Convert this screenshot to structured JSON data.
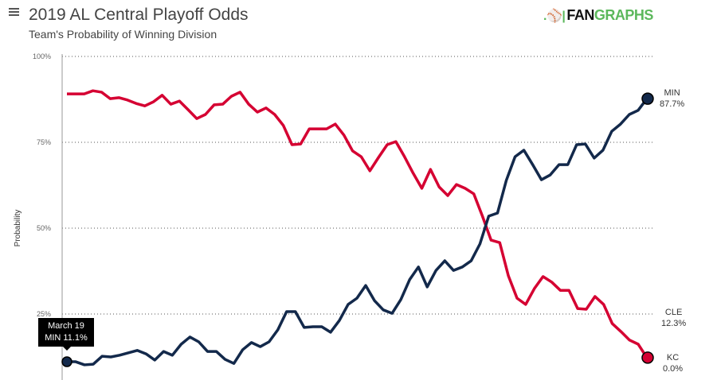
{
  "header": {
    "title": "2019 AL Central Playoff Odds",
    "subtitle": "Team's Probability of Winning Division",
    "menu_icon": "hamburger-icon",
    "logo_fan": "FAN",
    "logo_graphs": "GRAPHS"
  },
  "tooltip": {
    "date": "March 19",
    "text": "MIN 11.1%"
  },
  "chart_data": {
    "type": "line",
    "title": "2019 AL Central Playoff Odds",
    "subtitle": "Team's Probability of Winning Division",
    "ylabel": "Probability",
    "xlabel": "",
    "ylim": [
      0,
      100
    ],
    "yticks": [
      "100%",
      "75%",
      "50%",
      "25%"
    ],
    "ytick_values": [
      100,
      75,
      50,
      25
    ],
    "grid": true,
    "series": [
      {
        "name": "MIN",
        "color": "#13294b",
        "end_label": "MIN",
        "end_value": "87.7%",
        "values": [
          11.1,
          11.1,
          10.2,
          10.4,
          12.7,
          12.5,
          13.0,
          13.7,
          14.4,
          13.4,
          11.6,
          14.1,
          13.0,
          16.2,
          18.3,
          16.9,
          14.1,
          14.1,
          11.8,
          10.6,
          14.6,
          16.7,
          15.5,
          16.9,
          20.4,
          25.7,
          25.7,
          21.1,
          21.3,
          21.3,
          19.7,
          23.1,
          27.8,
          29.6,
          33.3,
          28.9,
          26.2,
          25.2,
          29.2,
          35.0,
          38.7,
          32.9,
          37.7,
          40.5,
          37.7,
          38.7,
          40.5,
          45.4,
          53.5,
          54.4,
          63.9,
          70.8,
          72.7,
          68.5,
          64.1,
          65.5,
          68.5,
          68.5,
          74.3,
          74.5,
          70.4,
          72.7,
          78.2,
          80.3,
          83.1,
          84.3,
          87.7
        ]
      },
      {
        "name": "CLE",
        "color": "#d50032",
        "end_label": "CLE",
        "end_value": "12.3%",
        "values": [
          89.1,
          89.1,
          89.1,
          90.0,
          89.6,
          87.7,
          88.0,
          87.3,
          86.3,
          85.6,
          86.8,
          88.7,
          86.1,
          87.0,
          84.5,
          81.9,
          83.1,
          85.9,
          86.1,
          88.4,
          89.6,
          86.1,
          83.8,
          85.0,
          83.1,
          79.9,
          74.3,
          74.5,
          78.9,
          78.9,
          78.9,
          80.3,
          77.1,
          72.5,
          70.8,
          66.7,
          70.6,
          74.3,
          75.2,
          70.8,
          66.0,
          61.6,
          67.1,
          62.0,
          59.5,
          62.7,
          61.6,
          60.0,
          53.5,
          46.5,
          45.8,
          36.1,
          29.6,
          27.8,
          32.4,
          35.9,
          34.3,
          31.9,
          31.9,
          26.6,
          26.4,
          30.1,
          27.8,
          22.2,
          19.9,
          17.4,
          16.2,
          12.3
        ]
      },
      {
        "name": "KC",
        "end_label": "KC",
        "end_value": "0.0%",
        "values": [
          0.0
        ]
      }
    ]
  }
}
